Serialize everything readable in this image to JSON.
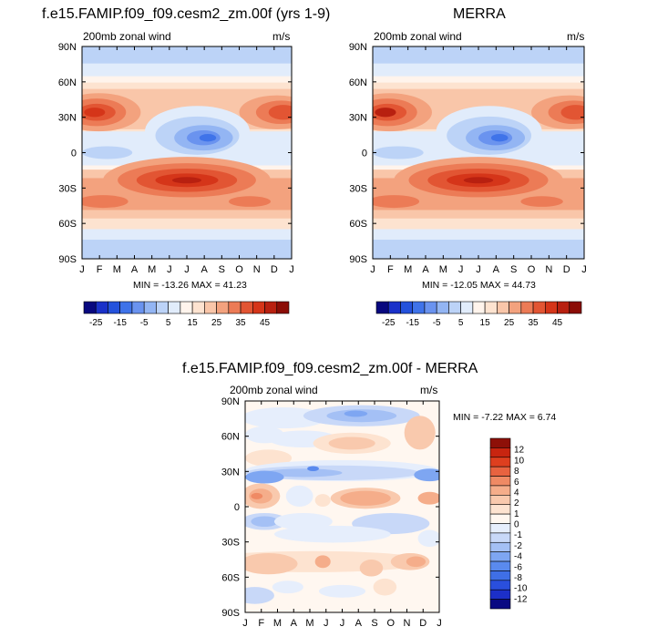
{
  "colors": {
    "levels": [
      "#08087f",
      "#1a31c9",
      "#2452dc",
      "#3f73e9",
      "#6a93ef",
      "#93b5f3",
      "#bcd3f7",
      "#e1ecfb",
      "#fff4ec",
      "#fde3d0",
      "#f9c6a9",
      "#f3a27e",
      "#ec7b56",
      "#e25533",
      "#d53519",
      "#b82010",
      "#8b0d06"
    ],
    "diff_levels": [
      "#0a0a82",
      "#1c2fc8",
      "#2a4fdd",
      "#3f6fe6",
      "#5a8aee",
      "#7ea6f2",
      "#a4c0f5",
      "#c8d8f8",
      "#e6eefc",
      "#fff7f0",
      "#fde3d0",
      "#f9c9ad",
      "#f5ad8a",
      "#ef8a64",
      "#e86340",
      "#de3f1f",
      "#c82510",
      "#8e1008"
    ]
  },
  "panels": [
    {
      "title": "f.e15.FAMIP.f09_f09.cesm2_zm.00f (yrs 1-9)",
      "left_label": "200mb zonal wind",
      "right_label": "m/s",
      "stats": "MIN = -13.26 MAX =  41.23"
    },
    {
      "title": "MERRA",
      "left_label": "200mb zonal wind",
      "right_label": "m/s",
      "stats": "MIN = -12.05 MAX =  44.73"
    },
    {
      "title": "f.e15.FAMIP.f09_f09.cesm2_zm.00f - MERRA",
      "left_label": "200mb zonal wind",
      "right_label": "m/s",
      "stats": "MIN =  -7.22 MAX =   6.74"
    }
  ],
  "chart_data": [
    {
      "type": "heatmap",
      "title": "f.e15.FAMIP.f09_f09.cesm2_zm.00f (yrs 1-9)",
      "subtitle_left": "200mb zonal wind",
      "subtitle_right": "m/s",
      "x_ticks": [
        "J",
        "F",
        "M",
        "A",
        "M",
        "J",
        "J",
        "A",
        "S",
        "O",
        "N",
        "D",
        "J"
      ],
      "y_ticks": [
        "90N",
        "60N",
        "30N",
        "0",
        "30S",
        "60S",
        "90S"
      ],
      "colorbar_labels": [
        "-25",
        "-15",
        "-5",
        "5",
        "15",
        "25",
        "35",
        "45"
      ],
      "min": -13.26,
      "max": 41.23
    },
    {
      "type": "heatmap",
      "title": "MERRA",
      "subtitle_left": "200mb zonal wind",
      "subtitle_right": "m/s",
      "x_ticks": [
        "J",
        "F",
        "M",
        "A",
        "M",
        "J",
        "J",
        "A",
        "S",
        "O",
        "N",
        "D",
        "J"
      ],
      "y_ticks": [
        "90N",
        "60N",
        "30N",
        "0",
        "30S",
        "60S",
        "90S"
      ],
      "colorbar_labels": [
        "-25",
        "-15",
        "-5",
        "5",
        "15",
        "25",
        "35",
        "45"
      ],
      "min": -12.05,
      "max": 44.73
    },
    {
      "type": "heatmap",
      "title": "f.e15.FAMIP.f09_f09.cesm2_zm.00f - MERRA",
      "subtitle_left": "200mb zonal wind",
      "subtitle_right": "m/s",
      "x_ticks": [
        "J",
        "F",
        "M",
        "A",
        "M",
        "J",
        "J",
        "A",
        "S",
        "O",
        "N",
        "D",
        "J"
      ],
      "y_ticks": [
        "90N",
        "60N",
        "30N",
        "0",
        "30S",
        "60S",
        "90S"
      ],
      "colorbar_labels": [
        "12",
        "10",
        "8",
        "6",
        "4",
        "2",
        "1",
        "0",
        "-1",
        "-2",
        "-4",
        "-6",
        "-8",
        "-10",
        "-12"
      ],
      "min": -7.22,
      "max": 6.74
    }
  ]
}
